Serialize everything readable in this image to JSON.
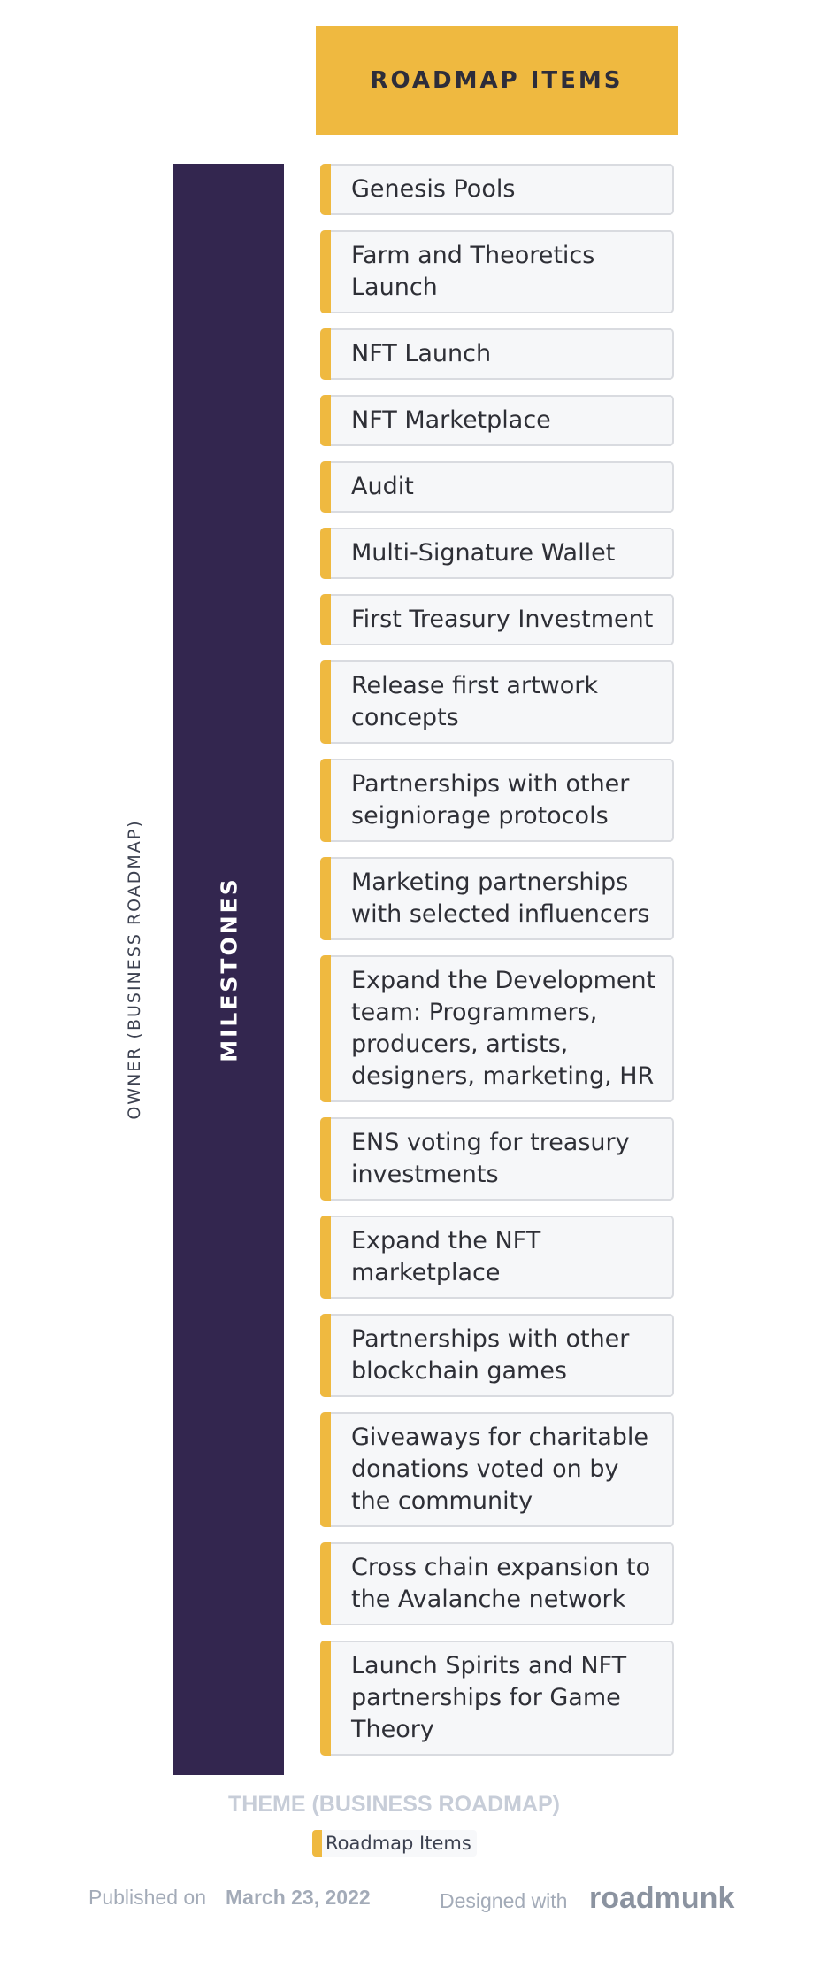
{
  "header": {
    "title": "ROADMAP ITEMS"
  },
  "owner_label": "OWNER (BUSINESS ROADMAP)",
  "group_label": "MILESTONES",
  "items": [
    "Genesis Pools",
    "Farm and Theoretics Launch",
    "NFT Launch",
    "NFT Marketplace",
    "Audit",
    "Multi-Signature Wallet",
    "First Treasury Investment",
    "Release first artwork concepts",
    "Partnerships with other seigniorage protocols",
    "Marketing partnerships with selected influencers",
    "Expand the Development team: Programmers, producers, artists, designers, marketing, HR",
    "ENS voting for treasury investments",
    "Expand the NFT marketplace",
    "Partnerships with other blockchain games",
    "Giveaways for charitable donations voted on by the community",
    "Cross chain expansion to the Avalanche network",
    "Launch Spirits and NFT partnerships for Game Theory"
  ],
  "legend": {
    "title": "THEME (BUSINESS ROADMAP)",
    "items": [
      {
        "label": "Roadmap Items",
        "color": "#efb940"
      }
    ]
  },
  "footer": {
    "published_prefix": "Published on",
    "published_date": "March 23, 2022",
    "designed_prefix": "Designed with",
    "brand": "roadmunk"
  },
  "colors": {
    "accent": "#efb940",
    "milestone_bar": "#33264f",
    "card_bg": "#f6f7f9"
  }
}
